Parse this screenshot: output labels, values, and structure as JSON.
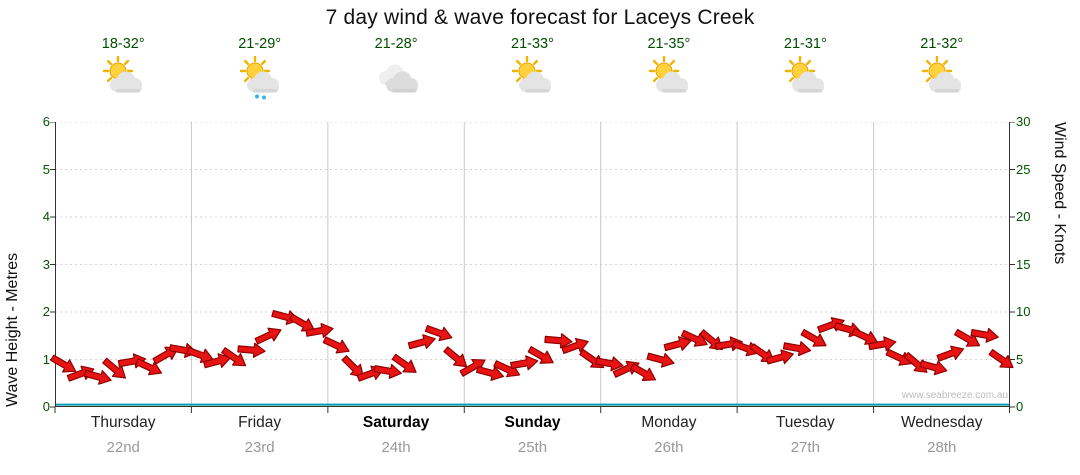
{
  "title": "7 day wind & wave forecast for Laceys Creek",
  "watermark": "www.seabreeze.com.au",
  "days": [
    {
      "name": "Thursday",
      "date": "22nd",
      "temp": "18-32°",
      "icon": "sun-cloud",
      "bold": false
    },
    {
      "name": "Friday",
      "date": "23rd",
      "temp": "21-29°",
      "icon": "sun-cloud-rain",
      "bold": false
    },
    {
      "name": "Saturday",
      "date": "24th",
      "temp": "21-28°",
      "icon": "cloudy",
      "bold": true
    },
    {
      "name": "Sunday",
      "date": "25th",
      "temp": "21-33°",
      "icon": "sun-cloud",
      "bold": true
    },
    {
      "name": "Monday",
      "date": "26th",
      "temp": "21-35°",
      "icon": "sun-cloud",
      "bold": false
    },
    {
      "name": "Tuesday",
      "date": "27th",
      "temp": "21-31°",
      "icon": "sun-cloud",
      "bold": false
    },
    {
      "name": "Wednesday",
      "date": "28th",
      "temp": "21-32°",
      "icon": "sun-cloud",
      "bold": false
    }
  ],
  "axes": {
    "left_label": "Wave Height - Metres",
    "right_label": "Wind Speed - Knots",
    "left_ticks": [
      0,
      1,
      2,
      3,
      4,
      5,
      6
    ],
    "right_ticks": [
      0,
      5,
      10,
      15,
      20,
      25,
      30
    ]
  },
  "chart_data": {
    "type": "line",
    "title": "7 day wind & wave forecast for Laceys Creek",
    "categories": [
      "Thursday 22nd",
      "Friday 23rd",
      "Saturday 24th",
      "Sunday 25th",
      "Monday 26th",
      "Tuesday 27th",
      "Wednesday 28th"
    ],
    "points_per_day": 8,
    "ylim_left_metres": [
      0,
      6
    ],
    "ylim_right_knots": [
      0,
      30
    ],
    "grid": true,
    "series": [
      {
        "name": "Wind Speed (knots, shown as red direction arrows)",
        "values": [
          4.5,
          3.5,
          3.2,
          4.0,
          4.8,
          4.2,
          5.5,
          6.0,
          5.5,
          4.8,
          5.2,
          6.0,
          7.5,
          9.5,
          8.8,
          8.0,
          6.5,
          4.2,
          3.5,
          3.8,
          4.5,
          6.8,
          7.8,
          5.2,
          4.2,
          3.6,
          4.0,
          4.6,
          5.4,
          7.0,
          6.4,
          5.0,
          4.6,
          4.0,
          3.6,
          5.0,
          6.6,
          7.2,
          7.0,
          6.6,
          6.2,
          5.6,
          5.2,
          6.2,
          7.2,
          8.6,
          8.2,
          7.4,
          6.6,
          5.2,
          4.6,
          4.2,
          5.6,
          7.2,
          7.6,
          5.0
        ]
      },
      {
        "name": "Wind Direction (degrees of arrow rotation)",
        "values": [
          30,
          -20,
          15,
          40,
          -10,
          25,
          -30,
          10,
          20,
          -15,
          35,
          5,
          -25,
          15,
          30,
          -10,
          25,
          45,
          -20,
          10,
          35,
          -15,
          20,
          40,
          -30,
          15,
          25,
          -10,
          30,
          5,
          -20,
          35,
          10,
          -25,
          30,
          15,
          -15,
          25,
          40,
          -10,
          20,
          35,
          -15,
          10,
          30,
          -20,
          15,
          25,
          -10,
          25,
          40,
          15,
          -20,
          30,
          10,
          35
        ]
      },
      {
        "name": "Wave Height (metres, flat teal line)",
        "flat_value": 0.05
      }
    ],
    "colors": {
      "wind_arrow_fill": "#e81414",
      "wind_arrow_outline": "#8f0000",
      "wave_line": "#0099b0",
      "grid_line": "#c8c8c8",
      "axis_line": "#333333"
    }
  }
}
